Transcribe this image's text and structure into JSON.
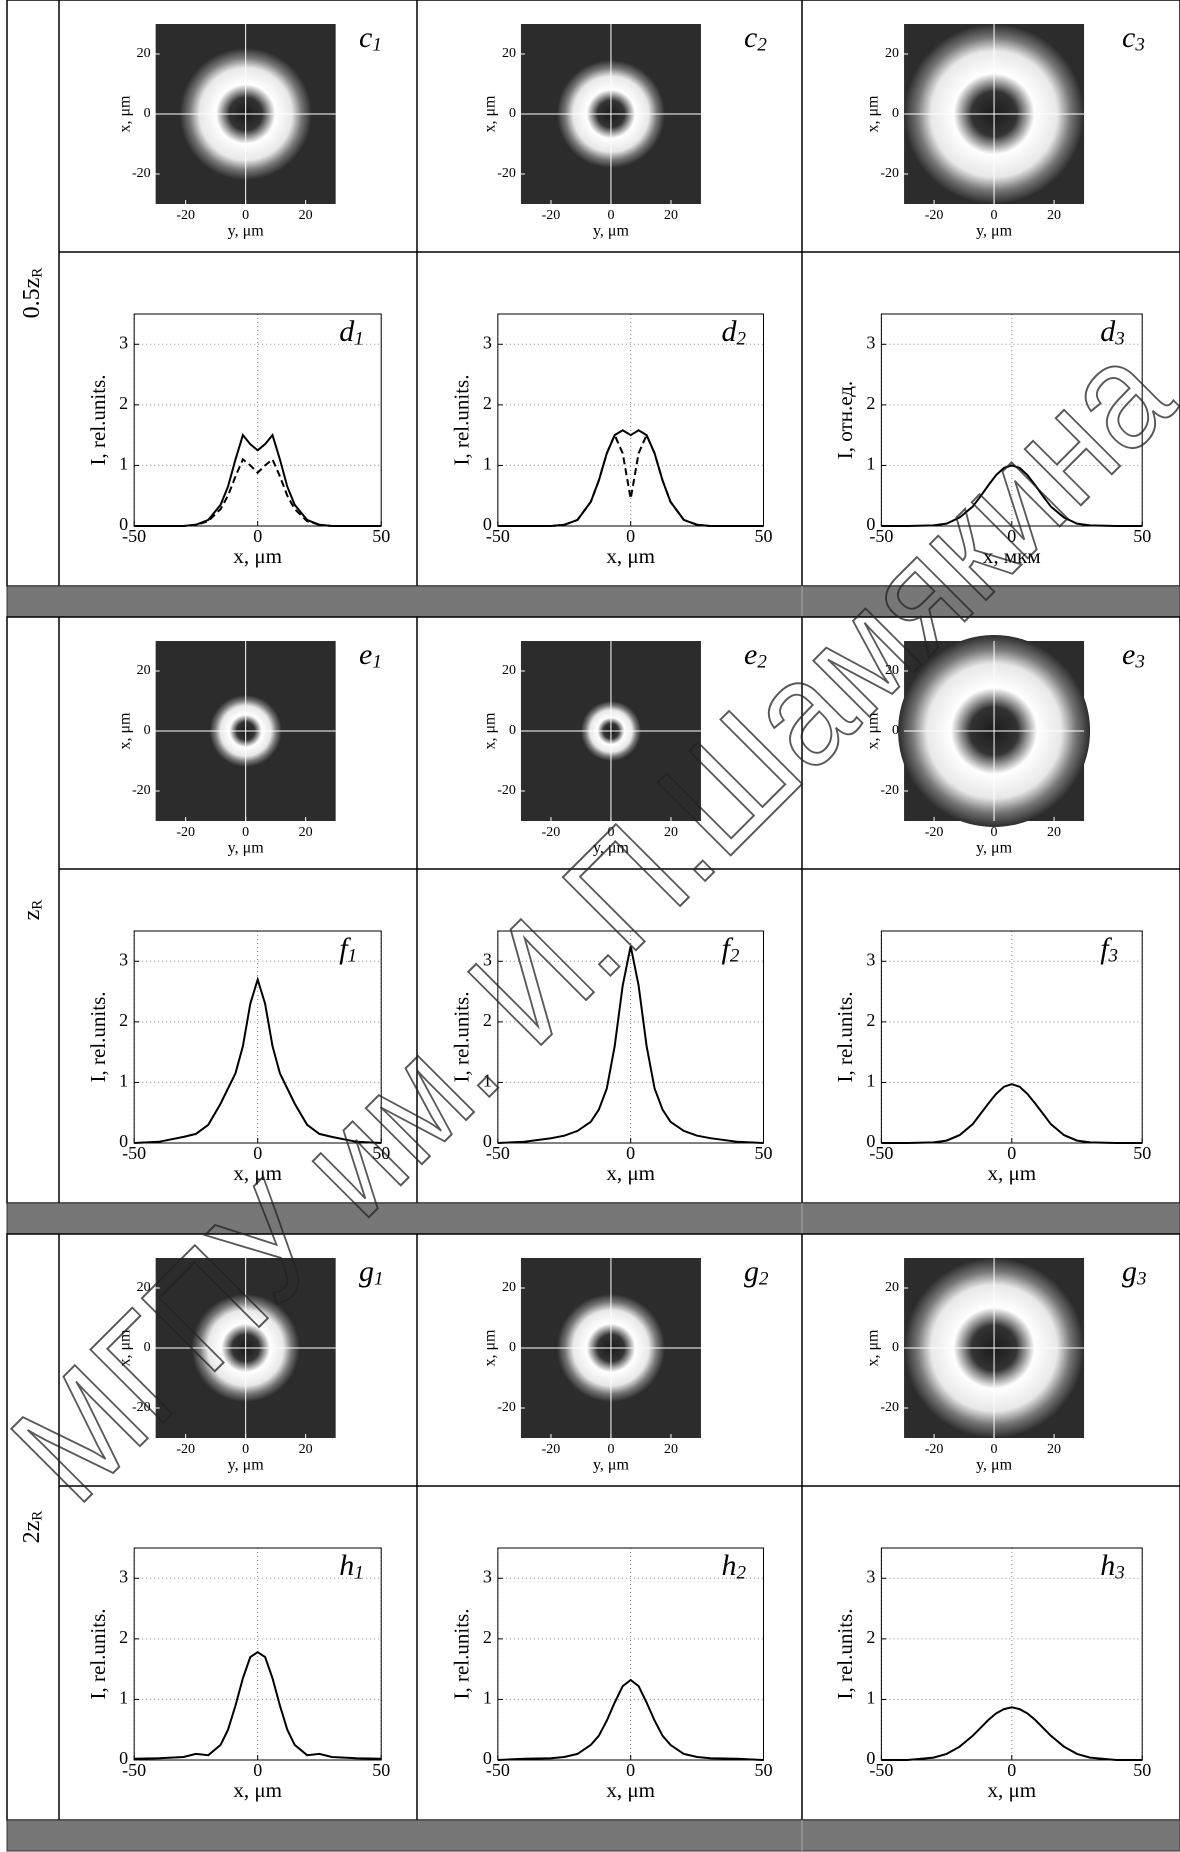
{
  "rows": [
    {
      "label": "0.5z",
      "label_sub": "R",
      "images": [
        {
          "label": "c",
          "label_sub": "1",
          "xlabel": "y, μm",
          "ylabel": "x, μm",
          "xlim": [
            -30,
            30
          ],
          "ylim": [
            -30,
            30
          ],
          "xticks": [
            -20,
            0,
            20
          ],
          "yticks": [
            -20,
            0,
            20
          ]
        },
        {
          "label": "c",
          "label_sub": "2",
          "xlabel": "y, μm",
          "ylabel": "x, μm",
          "xlim": [
            -30,
            30
          ],
          "ylim": [
            -30,
            30
          ],
          "xticks": [
            -20,
            0,
            20
          ],
          "yticks": [
            -20,
            0,
            20
          ]
        },
        {
          "label": "c",
          "label_sub": "3",
          "xlabel": "y, μm",
          "ylabel": "x, μm",
          "xlim": [
            -30,
            30
          ],
          "ylim": [
            -30,
            30
          ],
          "xticks": [
            -20,
            0,
            20
          ],
          "yticks": [
            -20,
            0,
            20
          ]
        }
      ],
      "plots": [
        {
          "type": "line",
          "label": "d",
          "label_sub": "1",
          "xlabel": "x, μm",
          "ylabel": "I, rel.units.",
          "xlim": [
            -50,
            50
          ],
          "ylim": [
            0,
            3.5
          ],
          "xticks": [
            -50,
            0,
            50
          ],
          "yticks": [
            0,
            1,
            2,
            3
          ],
          "grid": true,
          "x": [
            -50,
            -40,
            -30,
            -25,
            -20,
            -15,
            -12,
            -9,
            -6,
            -3,
            0,
            3,
            6,
            9,
            12,
            15,
            20,
            25,
            30,
            40,
            50
          ],
          "series": [
            {
              "color": "#000000",
              "style": "solid",
              "values": [
                0,
                0,
                0,
                0.02,
                0.1,
                0.35,
                0.65,
                1.1,
                1.5,
                1.35,
                1.25,
                1.35,
                1.5,
                1.1,
                0.65,
                0.35,
                0.1,
                0.02,
                0,
                0,
                0
              ]
            },
            {
              "color": "#000000",
              "style": "dashed",
              "values": [
                0,
                0,
                0,
                0.02,
                0.08,
                0.28,
                0.5,
                0.82,
                1.1,
                1.0,
                0.88,
                1.0,
                1.1,
                0.82,
                0.5,
                0.28,
                0.08,
                0.02,
                0,
                0,
                0
              ]
            }
          ]
        },
        {
          "type": "line",
          "label": "d",
          "label_sub": "2",
          "xlabel": "x, μm",
          "ylabel": "I, rel.units.",
          "xlim": [
            -50,
            50
          ],
          "ylim": [
            0,
            3.5
          ],
          "xticks": [
            -50,
            0,
            50
          ],
          "yticks": [
            0,
            1,
            2,
            3
          ],
          "grid": true,
          "x": [
            -50,
            -40,
            -30,
            -25,
            -20,
            -15,
            -12,
            -9,
            -6,
            -3,
            0,
            3,
            6,
            9,
            12,
            15,
            20,
            25,
            30,
            40,
            50
          ],
          "series": [
            {
              "color": "#000000",
              "style": "solid",
              "values": [
                0,
                0,
                0,
                0.02,
                0.1,
                0.4,
                0.75,
                1.2,
                1.5,
                1.58,
                1.5,
                1.58,
                1.5,
                1.2,
                0.75,
                0.4,
                0.1,
                0.02,
                0,
                0,
                0
              ]
            },
            {
              "color": "#000000",
              "style": "dashed",
              "values": [
                0,
                0,
                0,
                0.02,
                0.1,
                0.4,
                0.75,
                1.2,
                1.5,
                1.2,
                0.45,
                1.2,
                1.5,
                1.2,
                0.75,
                0.4,
                0.1,
                0.02,
                0,
                0,
                0
              ]
            }
          ]
        },
        {
          "type": "line",
          "label": "d",
          "label_sub": "3",
          "xlabel": "x, мкм",
          "ylabel": "I, отн.ед.",
          "xlim": [
            -50,
            50
          ],
          "ylim": [
            0,
            3.5
          ],
          "xticks": [
            -50,
            0,
            50
          ],
          "yticks": [
            0,
            1,
            2,
            3
          ],
          "grid": true,
          "x": [
            -50,
            -40,
            -30,
            -25,
            -20,
            -15,
            -12,
            -9,
            -6,
            -3,
            0,
            3,
            6,
            9,
            12,
            15,
            20,
            25,
            30,
            40,
            50
          ],
          "series": [
            {
              "color": "#000000",
              "style": "solid",
              "values": [
                0,
                0,
                0.01,
                0.04,
                0.14,
                0.32,
                0.49,
                0.67,
                0.84,
                0.96,
                1.0,
                0.96,
                0.84,
                0.67,
                0.49,
                0.32,
                0.14,
                0.04,
                0.01,
                0,
                0
              ]
            }
          ]
        }
      ]
    },
    {
      "label": "z",
      "label_sub": "R",
      "images": [
        {
          "label": "e",
          "label_sub": "1",
          "xlabel": "y, μm",
          "ylabel": "x, μm",
          "xlim": [
            -30,
            30
          ],
          "ylim": [
            -30,
            30
          ],
          "xticks": [
            -20,
            0,
            20
          ],
          "yticks": [
            -20,
            0,
            20
          ]
        },
        {
          "label": "e",
          "label_sub": "2",
          "xlabel": "y, μm",
          "ylabel": "x, μm",
          "xlim": [
            -30,
            30
          ],
          "ylim": [
            -30,
            30
          ],
          "xticks": [
            -20,
            0,
            20
          ],
          "yticks": [
            -20,
            0,
            20
          ]
        },
        {
          "label": "e",
          "label_sub": "3",
          "xlabel": "y, μm",
          "ylabel": "x, μm",
          "xlim": [
            -30,
            30
          ],
          "ylim": [
            -30,
            30
          ],
          "xticks": [
            -20,
            0,
            20
          ],
          "yticks": [
            -20,
            0,
            20
          ]
        }
      ],
      "plots": [
        {
          "type": "line",
          "label": "f",
          "label_sub": "1",
          "xlabel": "x, μm",
          "ylabel": "I, rel.units.",
          "xlim": [
            -50,
            50
          ],
          "ylim": [
            0,
            3.5
          ],
          "xticks": [
            -50,
            0,
            50
          ],
          "yticks": [
            0,
            1,
            2,
            3
          ],
          "grid": true,
          "x": [
            -50,
            -40,
            -30,
            -25,
            -20,
            -15,
            -12,
            -9,
            -6,
            -3,
            0,
            3,
            6,
            9,
            12,
            15,
            20,
            25,
            30,
            40,
            50
          ],
          "series": [
            {
              "color": "#000000",
              "style": "solid",
              "values": [
                0,
                0.02,
                0.1,
                0.15,
                0.3,
                0.65,
                0.9,
                1.15,
                1.6,
                2.3,
                2.7,
                2.3,
                1.6,
                1.15,
                0.9,
                0.65,
                0.3,
                0.15,
                0.1,
                0.02,
                0
              ]
            }
          ]
        },
        {
          "type": "line",
          "label": "f",
          "label_sub": "2",
          "xlabel": "x, μm",
          "ylabel": "I, rel.units.",
          "xlim": [
            -50,
            50
          ],
          "ylim": [
            0,
            3.5
          ],
          "xticks": [
            -50,
            0,
            50
          ],
          "yticks": [
            0,
            1,
            2,
            3
          ],
          "grid": true,
          "x": [
            -50,
            -40,
            -30,
            -25,
            -20,
            -15,
            -12,
            -9,
            -6,
            -3,
            0,
            3,
            6,
            9,
            12,
            15,
            20,
            25,
            30,
            40,
            50
          ],
          "series": [
            {
              "color": "#000000",
              "style": "solid",
              "values": [
                0,
                0.02,
                0.08,
                0.12,
                0.2,
                0.35,
                0.55,
                0.9,
                1.6,
                2.6,
                3.25,
                2.6,
                1.6,
                0.9,
                0.55,
                0.35,
                0.2,
                0.12,
                0.08,
                0.02,
                0
              ]
            }
          ]
        },
        {
          "type": "line",
          "label": "f",
          "label_sub": "3",
          "xlabel": "x, μm",
          "ylabel": "I, rel.units.",
          "xlim": [
            -50,
            50
          ],
          "ylim": [
            0,
            3.5
          ],
          "xticks": [
            -50,
            0,
            50
          ],
          "yticks": [
            0,
            1,
            2,
            3
          ],
          "grid": true,
          "x": [
            -50,
            -40,
            -30,
            -25,
            -20,
            -15,
            -12,
            -9,
            -6,
            -3,
            0,
            3,
            6,
            9,
            12,
            15,
            20,
            25,
            30,
            40,
            50
          ],
          "series": [
            {
              "color": "#000000",
              "style": "solid",
              "values": [
                0,
                0,
                0.01,
                0.04,
                0.13,
                0.31,
                0.48,
                0.65,
                0.81,
                0.93,
                0.97,
                0.93,
                0.81,
                0.65,
                0.48,
                0.31,
                0.13,
                0.04,
                0.01,
                0,
                0
              ]
            }
          ]
        }
      ]
    },
    {
      "label": "2z",
      "label_sub": "R",
      "images": [
        {
          "label": "g",
          "label_sub": "1",
          "xlabel": "y, μm",
          "ylabel": "x, μm",
          "xlim": [
            -30,
            30
          ],
          "ylim": [
            -30,
            30
          ],
          "xticks": [
            -20,
            0,
            20
          ],
          "yticks": [
            -20,
            0,
            20
          ]
        },
        {
          "label": "g",
          "label_sub": "2",
          "xlabel": "y, μm",
          "ylabel": "x, μm",
          "xlim": [
            -30,
            30
          ],
          "ylim": [
            -30,
            30
          ],
          "xticks": [
            -20,
            0,
            20
          ],
          "yticks": [
            -20,
            0,
            20
          ]
        },
        {
          "label": "g",
          "label_sub": "3",
          "xlabel": "y, μm",
          "ylabel": "x, μm",
          "xlim": [
            -30,
            30
          ],
          "ylim": [
            -30,
            30
          ],
          "xticks": [
            -20,
            0,
            20
          ],
          "yticks": [
            -20,
            0,
            20
          ]
        }
      ],
      "plots": [
        {
          "type": "line",
          "label": "h",
          "label_sub": "1",
          "xlabel": "x, μm",
          "ylabel": "I, rel.units.",
          "xlim": [
            -50,
            50
          ],
          "ylim": [
            0,
            3.5
          ],
          "xticks": [
            -50,
            0,
            50
          ],
          "yticks": [
            0,
            1,
            2,
            3
          ],
          "grid": true,
          "x": [
            -50,
            -40,
            -30,
            -25,
            -20,
            -15,
            -12,
            -9,
            -6,
            -3,
            0,
            3,
            6,
            9,
            12,
            15,
            20,
            25,
            30,
            40,
            50
          ],
          "series": [
            {
              "color": "#000000",
              "style": "solid",
              "values": [
                0.02,
                0.03,
                0.05,
                0.1,
                0.08,
                0.25,
                0.5,
                0.9,
                1.35,
                1.7,
                1.78,
                1.7,
                1.35,
                0.9,
                0.5,
                0.25,
                0.08,
                0.1,
                0.05,
                0.03,
                0.02
              ]
            }
          ]
        },
        {
          "type": "line",
          "label": "h",
          "label_sub": "2",
          "xlabel": "x, μm",
          "ylabel": "I, rel.units.",
          "xlim": [
            -50,
            50
          ],
          "ylim": [
            0,
            3.5
          ],
          "xticks": [
            -50,
            0,
            50
          ],
          "yticks": [
            0,
            1,
            2,
            3
          ],
          "grid": true,
          "x": [
            -50,
            -40,
            -30,
            -25,
            -20,
            -15,
            -12,
            -9,
            -6,
            -3,
            0,
            3,
            6,
            9,
            12,
            15,
            20,
            25,
            30,
            40,
            50
          ],
          "series": [
            {
              "color": "#000000",
              "style": "solid",
              "values": [
                0,
                0.02,
                0.03,
                0.05,
                0.1,
                0.25,
                0.4,
                0.65,
                0.95,
                1.22,
                1.32,
                1.22,
                0.95,
                0.65,
                0.4,
                0.25,
                0.1,
                0.05,
                0.03,
                0.02,
                0
              ]
            }
          ]
        },
        {
          "type": "line",
          "label": "h",
          "label_sub": "3",
          "xlabel": "x, μm",
          "ylabel": "I, rel.units.",
          "xlim": [
            -50,
            50
          ],
          "ylim": [
            0,
            3.5
          ],
          "xticks": [
            -50,
            0,
            50
          ],
          "yticks": [
            0,
            1,
            2,
            3
          ],
          "grid": true,
          "x": [
            -50,
            -40,
            -30,
            -25,
            -20,
            -15,
            -12,
            -9,
            -6,
            -3,
            0,
            3,
            6,
            9,
            12,
            15,
            20,
            25,
            30,
            40,
            50
          ],
          "series": [
            {
              "color": "#000000",
              "style": "solid",
              "values": [
                0,
                0,
                0.04,
                0.1,
                0.22,
                0.4,
                0.53,
                0.66,
                0.77,
                0.84,
                0.87,
                0.84,
                0.77,
                0.66,
                0.53,
                0.4,
                0.22,
                0.1,
                0.04,
                0,
                0
              ]
            }
          ]
        }
      ]
    }
  ],
  "watermark": "МГПУ им. И.П.Шамякина"
}
